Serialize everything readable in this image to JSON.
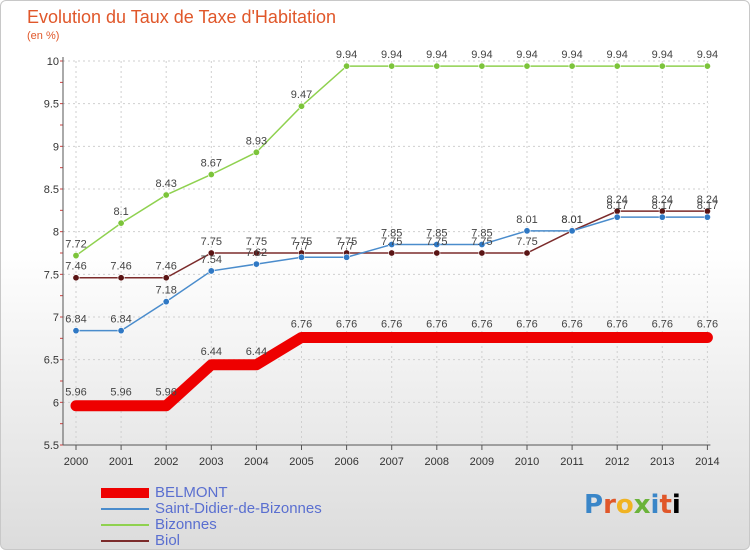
{
  "title": "Evolution du Taux de Taxe d'Habitation",
  "subtitle": "(en %)",
  "logo": [
    "P",
    "r",
    "o",
    "x",
    "i",
    "t",
    "i"
  ],
  "chart_data": {
    "type": "line",
    "title": "Evolution du Taux de Taxe d'Habitation",
    "ylabel": "(en %)",
    "xlabel": "",
    "categories": [
      "2000",
      "2001",
      "2002",
      "2003",
      "2004",
      "2005",
      "2006",
      "2007",
      "2008",
      "2009",
      "2010",
      "2011",
      "2012",
      "2013",
      "2014"
    ],
    "ylim": [
      5.5,
      10
    ],
    "yticks": [
      "5.5",
      "6",
      "6.5",
      "7",
      "7.5",
      "8",
      "8.5",
      "9",
      "9.5",
      "10"
    ],
    "grid": true,
    "legend_position": "bottom-left",
    "series": [
      {
        "name": "BELMONT",
        "color": "#ee0000",
        "values": [
          5.96,
          5.96,
          5.96,
          6.44,
          6.44,
          6.76,
          6.76,
          6.76,
          6.76,
          6.76,
          6.76,
          6.76,
          6.76,
          6.76,
          6.76
        ],
        "labels": [
          "5.96",
          "5.96",
          "5.96",
          "6.44",
          "6.44",
          "6.76",
          "6.76",
          "6.76",
          "6.76",
          "6.76",
          "6.76",
          "6.76",
          "6.76",
          "6.76",
          "6.76"
        ]
      },
      {
        "name": "Saint-Didier-de-Bizonnes",
        "color": "#4a8ccc",
        "values": [
          6.84,
          6.84,
          7.18,
          7.54,
          7.62,
          7.7,
          7.7,
          7.85,
          7.85,
          7.85,
          8.01,
          8.01,
          8.17,
          8.17,
          8.17
        ],
        "labels": [
          "6.84",
          "6.84",
          "7.18",
          "7.54",
          "7.62",
          "7.7",
          "7.7",
          "7.85",
          "7.85",
          "7.85",
          "8.01",
          "8.01",
          "8.17",
          "8.17",
          "8.17"
        ]
      },
      {
        "name": "Bizonnes",
        "color": "#8fd14f",
        "values": [
          7.72,
          8.1,
          8.43,
          8.67,
          8.93,
          9.47,
          9.94,
          9.94,
          9.94,
          9.94,
          9.94,
          9.94,
          9.94,
          9.94,
          9.94
        ],
        "labels": [
          "7.72",
          "8.1",
          "8.43",
          "8.67",
          "8.93",
          "9.47",
          "9.94",
          "9.94",
          "9.94",
          "9.94",
          "9.94",
          "9.94",
          "9.94",
          "9.94",
          "9.94"
        ]
      },
      {
        "name": "Biol",
        "color": "#7b2b2b",
        "values": [
          7.46,
          7.46,
          7.46,
          7.75,
          7.75,
          7.75,
          7.75,
          7.75,
          7.75,
          7.75,
          7.75,
          8.01,
          8.24,
          8.24,
          8.24
        ],
        "labels": [
          "7.46",
          "7.46",
          "7.46",
          "7.75",
          "7.75",
          "7.75",
          "7.75",
          "7.75",
          "7.75",
          "7.75",
          "7.75",
          "8.01",
          "8.24",
          "8.24",
          "8.24"
        ]
      }
    ]
  }
}
